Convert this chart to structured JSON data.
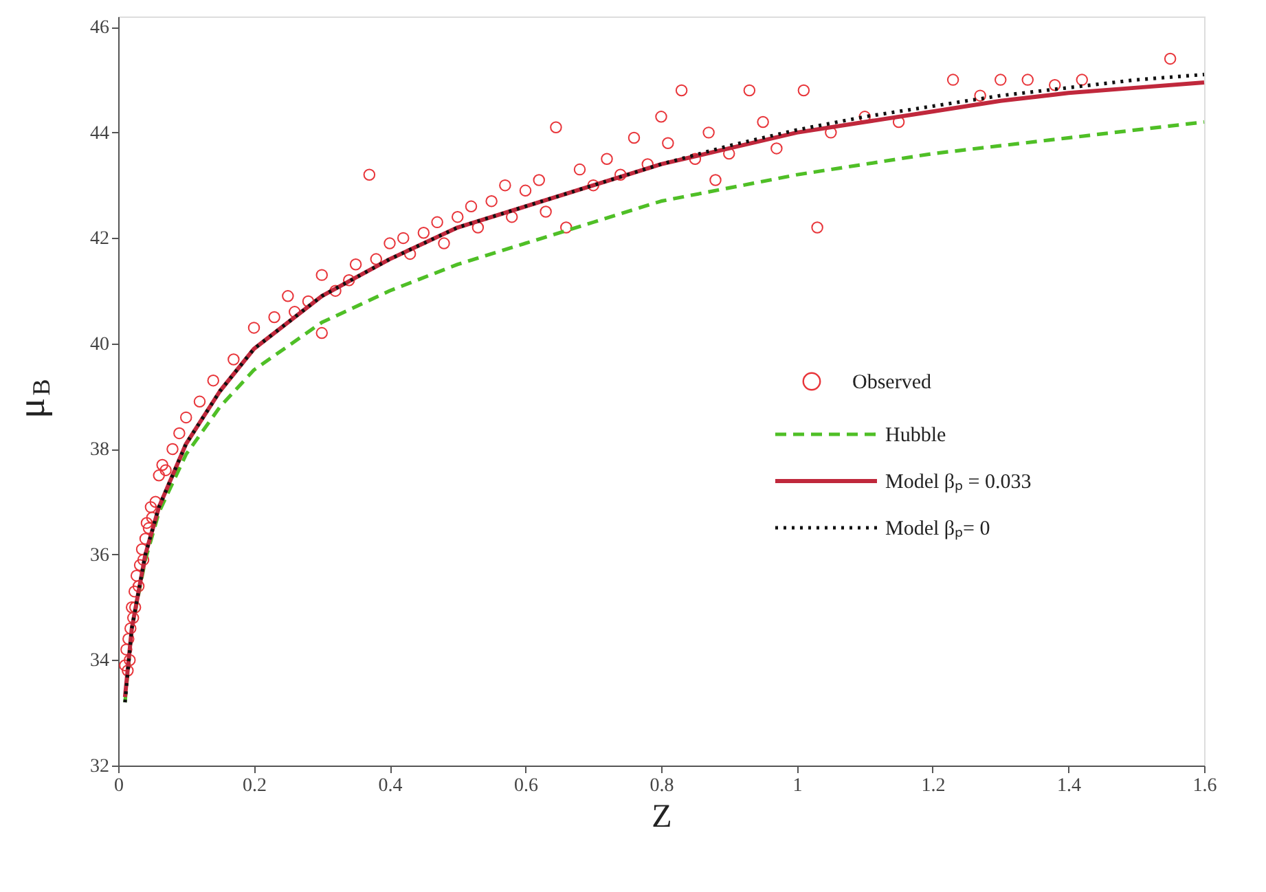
{
  "chart_data": {
    "type": "scatter",
    "xlabel": "Z",
    "ylabel": "μ$_{B}$",
    "xlim": [
      0,
      1.6
    ],
    "xticks": [
      0,
      0.2,
      0.4,
      0.6,
      0.8,
      1,
      1.2,
      1.4,
      1.6
    ],
    "ylim": [
      32,
      46.2
    ],
    "yticks": [
      32,
      34,
      36,
      38,
      40,
      42,
      44,
      46
    ],
    "grid": false,
    "legend": "right",
    "series": [
      {
        "name": "Observed",
        "marker": "circle",
        "color": "#e8353a",
        "x": [
          0.01,
          0.012,
          0.014,
          0.015,
          0.017,
          0.018,
          0.02,
          0.022,
          0.024,
          0.025,
          0.027,
          0.03,
          0.032,
          0.035,
          0.037,
          0.04,
          0.042,
          0.045,
          0.048,
          0.05,
          0.055,
          0.06,
          0.065,
          0.07,
          0.08,
          0.09,
          0.1,
          0.12,
          0.14,
          0.17,
          0.2,
          0.23,
          0.25,
          0.26,
          0.28,
          0.3,
          0.3,
          0.32,
          0.34,
          0.35,
          0.37,
          0.38,
          0.4,
          0.42,
          0.43,
          0.45,
          0.47,
          0.48,
          0.5,
          0.52,
          0.53,
          0.55,
          0.57,
          0.58,
          0.6,
          0.62,
          0.63,
          0.645,
          0.66,
          0.68,
          0.7,
          0.72,
          0.74,
          0.76,
          0.78,
          0.8,
          0.81,
          0.83,
          0.85,
          0.87,
          0.88,
          0.9,
          0.93,
          0.95,
          0.97,
          1.01,
          1.03,
          1.05,
          1.1,
          1.15,
          1.23,
          1.27,
          1.3,
          1.34,
          1.38,
          1.42,
          1.55
        ],
        "values": [
          33.9,
          34.2,
          33.8,
          34.4,
          34.0,
          34.6,
          35.0,
          34.8,
          35.3,
          35.0,
          35.6,
          35.4,
          35.8,
          36.1,
          35.9,
          36.3,
          36.6,
          36.5,
          36.9,
          36.7,
          37.0,
          37.5,
          37.7,
          37.6,
          38.0,
          38.3,
          38.6,
          38.9,
          39.3,
          39.7,
          40.3,
          40.5,
          40.9,
          40.6,
          40.8,
          40.2,
          41.3,
          41.0,
          41.2,
          41.5,
          43.2,
          41.6,
          41.9,
          42.0,
          41.7,
          42.1,
          42.3,
          41.9,
          42.4,
          42.6,
          42.2,
          42.7,
          43.0,
          42.4,
          42.9,
          43.1,
          42.5,
          44.1,
          42.2,
          43.3,
          43.0,
          43.5,
          43.2,
          43.9,
          43.4,
          44.3,
          43.8,
          44.8,
          43.5,
          44.0,
          43.1,
          43.6,
          44.8,
          44.2,
          43.7,
          44.8,
          42.2,
          44.0,
          44.3,
          44.2,
          45.0,
          44.7,
          45.0,
          45.0,
          44.9,
          45.0,
          45.4
        ]
      },
      {
        "name": "Hubble",
        "type": "line",
        "line_style": "dashed",
        "color": "#4fbf26",
        "x": [
          0.01,
          0.02,
          0.04,
          0.06,
          0.1,
          0.15,
          0.2,
          0.3,
          0.4,
          0.5,
          0.6,
          0.7,
          0.8,
          1.0,
          1.2,
          1.4,
          1.6
        ],
        "values": [
          33.2,
          34.6,
          35.9,
          36.8,
          37.9,
          38.8,
          39.5,
          40.4,
          41.0,
          41.5,
          41.9,
          42.3,
          42.7,
          43.2,
          43.6,
          43.9,
          44.2
        ]
      },
      {
        "name": "Model  βₚ = 0.033",
        "type": "line",
        "line_style": "solid",
        "color": "#c0283c",
        "x": [
          0.01,
          0.02,
          0.04,
          0.06,
          0.08,
          0.1,
          0.15,
          0.2,
          0.3,
          0.4,
          0.5,
          0.6,
          0.7,
          0.8,
          0.9,
          1.0,
          1.1,
          1.2,
          1.3,
          1.4,
          1.5,
          1.6
        ],
        "values": [
          33.3,
          34.6,
          36.0,
          36.9,
          37.5,
          38.1,
          39.1,
          39.9,
          40.9,
          41.6,
          42.2,
          42.6,
          43.0,
          43.4,
          43.7,
          44.0,
          44.2,
          44.4,
          44.6,
          44.75,
          44.85,
          44.95
        ]
      },
      {
        "name": "Model  βₚ= 0",
        "type": "line",
        "line_style": "dotted",
        "color": "#111111",
        "x": [
          0.01,
          0.02,
          0.04,
          0.06,
          0.08,
          0.1,
          0.15,
          0.2,
          0.3,
          0.4,
          0.5,
          0.6,
          0.7,
          0.8,
          0.9,
          1.0,
          1.1,
          1.2,
          1.3,
          1.4,
          1.5,
          1.6
        ],
        "values": [
          33.2,
          34.6,
          36.0,
          36.9,
          37.5,
          38.1,
          39.1,
          39.9,
          40.9,
          41.6,
          42.2,
          42.6,
          43.0,
          43.4,
          43.75,
          44.05,
          44.3,
          44.5,
          44.7,
          44.85,
          45.0,
          45.1
        ]
      }
    ]
  }
}
